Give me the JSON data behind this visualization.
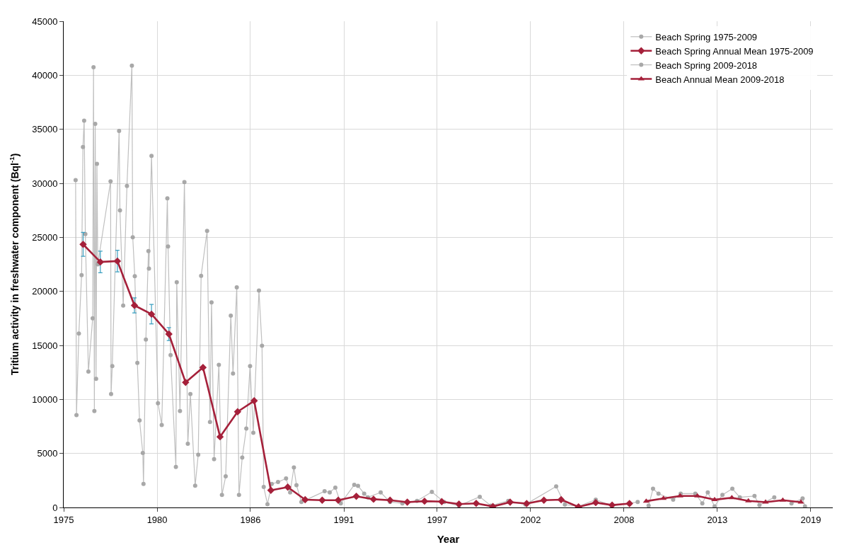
{
  "chart_data": {
    "type": "line",
    "xlabel": "Year",
    "ylabel": "Tritium activity in freshwater component (Bql$^{-1}$)",
    "xlim": [
      1975,
      2020.1
    ],
    "xticks": [
      {
        "value": 1975,
        "label": "1975"
      },
      {
        "value": 1980.48,
        "label": "1980"
      },
      {
        "value": 1985.95,
        "label": "1986"
      },
      {
        "value": 1991.43,
        "label": "1991"
      },
      {
        "value": 1996.9,
        "label": "1997"
      },
      {
        "value": 2002.38,
        "label": "2002"
      },
      {
        "value": 2007.86,
        "label": "2008"
      },
      {
        "value": 2013.33,
        "label": "2013"
      },
      {
        "value": 2018.81,
        "label": "2019"
      }
    ],
    "ylim": [
      0,
      45000
    ],
    "yticks": [
      0,
      5000,
      10000,
      15000,
      20000,
      25000,
      30000,
      35000,
      40000,
      45000
    ],
    "grid": true,
    "legend": "top right",
    "series": [
      {
        "name": "Beach Spring 1975-2009",
        "color": "#b4b4b4",
        "marker": "circle",
        "x": [
          1975.7,
          1975.75,
          1975.89,
          1976.05,
          1976.13,
          1976.2,
          1976.27,
          1976.45,
          1976.7,
          1976.75,
          1976.8,
          1976.85,
          1976.9,
          1976.95,
          1977.0,
          1977.75,
          1977.78,
          1977.85,
          1978.25,
          1978.3,
          1978.49,
          1978.71,
          1979.0,
          1979.05,
          1979.17,
          1979.32,
          1979.45,
          1979.64,
          1979.68,
          1979.82,
          1979.97,
          1980.0,
          1980.15,
          1980.53,
          1980.75,
          1981.08,
          1981.12,
          1981.27,
          1981.58,
          1981.63,
          1981.82,
          1982.08,
          1982.28,
          1982.43,
          1982.71,
          1982.89,
          1983.06,
          1983.41,
          1983.58,
          1983.67,
          1983.82,
          1984.1,
          1984.28,
          1984.5,
          1984.8,
          1984.93,
          1985.15,
          1985.28,
          1985.47,
          1985.71,
          1985.93,
          1986.12,
          1986.45,
          1986.63,
          1986.73,
          1986.95,
          1987.2,
          1987.57,
          1988.04,
          1988.28,
          1988.5,
          1988.65,
          1988.94,
          1990.3,
          1990.6,
          1990.93,
          1991.25,
          1992.04,
          1992.26,
          1992.62,
          1992.84,
          1993.59,
          1994.14,
          1994.86,
          1995.72,
          1996.59,
          1997.31,
          1998.18,
          1999.4,
          2000.05,
          2001.07,
          2002.08,
          2003.88,
          2004.39,
          2005.19,
          2006.2,
          2007.14,
          2008.15,
          2008.66
        ],
        "values": [
          30300,
          8550,
          16100,
          21500,
          33350,
          35800,
          25300,
          12570,
          17500,
          40740,
          8920,
          35500,
          11900,
          31800,
          22500,
          30180,
          10500,
          13090,
          34850,
          27500,
          18690,
          29760,
          40890,
          25000,
          21400,
          13380,
          8060,
          5040,
          2170,
          15540,
          23730,
          22100,
          32540,
          9650,
          7630,
          28600,
          24160,
          14100,
          3750,
          20840,
          8920,
          30120,
          5900,
          10500,
          2020,
          4880,
          21440,
          25590,
          7910,
          18980,
          4470,
          13200,
          1160,
          2880,
          17750,
          12400,
          20370,
          1160,
          4610,
          7300,
          13090,
          6910,
          20080,
          14960,
          1900,
          300,
          2180,
          2350,
          2690,
          1390,
          3700,
          2070,
          500,
          1500,
          1390,
          1840,
          380,
          2090,
          2000,
          1280,
          940,
          1390,
          500,
          380,
          610,
          1440,
          500,
          160,
          990,
          160,
          610,
          270,
          1950,
          270,
          100,
          720,
          160,
          380,
          500
        ]
      },
      {
        "name": "Beach Spring Annual Mean 1975-2009",
        "color": "#a5203a",
        "marker": "diamond",
        "x": [
          1976.14,
          1977.15,
          1978.15,
          1979.15,
          1980.15,
          1981.17,
          1982.15,
          1983.17,
          1984.17,
          1985.2,
          1986.17,
          1987.15,
          1988.14,
          1989.16,
          1990.16,
          1991.1,
          1992.16,
          1993.17,
          1994.14,
          1995.15,
          1996.16,
          1997.17,
          1998.18,
          1999.19,
          2000.17,
          2001.18,
          2002.15,
          2003.16,
          2004.17,
          2005.19,
          2006.2,
          2007.16,
          2008.18
        ],
        "values": [
          24350,
          22720,
          22800,
          18700,
          17890,
          16050,
          11570,
          12950,
          6540,
          8860,
          9870,
          1590,
          1880,
          720,
          670,
          670,
          1030,
          760,
          670,
          490,
          580,
          540,
          310,
          380,
          90,
          490,
          360,
          670,
          720,
          50,
          450,
          220,
          360
        ],
        "errors": [
          1100,
          1000,
          1000,
          700,
          900,
          600,
          null,
          null,
          null,
          null,
          null,
          null,
          null,
          null,
          null,
          null,
          null,
          null,
          null,
          null,
          null,
          null,
          null,
          null,
          null,
          null,
          null,
          null,
          null,
          null,
          null,
          null,
          null
        ]
      },
      {
        "name": "Beach Spring 2009-2018",
        "color": "#b4b4b4",
        "marker": "circle",
        "x": [
          2009.3,
          2009.56,
          2009.88,
          2010.74,
          2011.18,
          2012.04,
          2012.45,
          2012.77,
          2013.17,
          2013.63,
          2014.21,
          2014.65,
          2015.51,
          2015.8,
          2016.67,
          2017.25,
          2017.68,
          2018.33,
          2018.47
        ],
        "values": [
          160,
          1730,
          1280,
          720,
          1280,
          1280,
          380,
          1390,
          100,
          1170,
          1730,
          940,
          1060,
          220,
          940,
          null,
          380,
          830,
          100
        ]
      },
      {
        "name": "Beach Annual Mean 2009-2018",
        "color": "#a5203a",
        "marker": "triangle",
        "x": [
          2009.16,
          2010.17,
          2011.15,
          2012.16,
          2013.17,
          2014.18,
          2015.15,
          2016.16,
          2017.17,
          2018.23
        ],
        "values": [
          580,
          830,
          1060,
          1060,
          720,
          900,
          610,
          490,
          670,
          490
        ]
      }
    ]
  }
}
